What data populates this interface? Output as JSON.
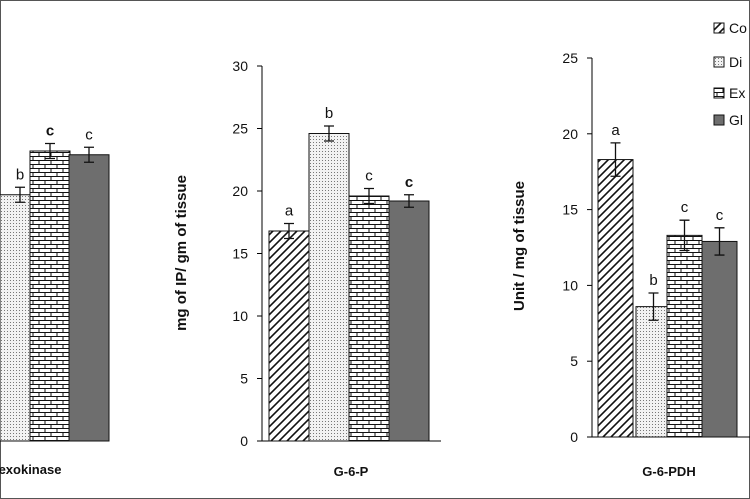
{
  "chart_data": [
    {
      "type": "bar",
      "xlabel": "exokinase",
      "ylabel": "",
      "categories": [
        "",
        "",
        "",
        ""
      ],
      "values": [
        null,
        19.7,
        23.2,
        22.9
      ],
      "errors": [
        null,
        0.6,
        0.6,
        0.6
      ],
      "letters": [
        "",
        "b",
        "c",
        "c"
      ],
      "letters_bold": [
        false,
        false,
        true,
        false
      ],
      "ylim": [
        0,
        30
      ]
    },
    {
      "type": "bar",
      "xlabel": "G-6-P",
      "ylabel": "mg of IP/ gm of tissue",
      "categories": [
        "",
        "",
        "",
        ""
      ],
      "values": [
        16.8,
        24.6,
        19.6,
        19.2
      ],
      "errors": [
        0.6,
        0.6,
        0.6,
        0.5
      ],
      "letters": [
        "a",
        "b",
        "c",
        "c"
      ],
      "letters_bold": [
        false,
        false,
        false,
        true
      ],
      "yticks": [
        "0",
        "5",
        "10",
        "15",
        "20",
        "25",
        "30"
      ],
      "ylim": [
        0,
        30
      ]
    },
    {
      "type": "bar",
      "xlabel": "G-6-PDH",
      "ylabel": "Unit / mg of tissue",
      "categories": [
        "",
        "",
        "",
        ""
      ],
      "values": [
        18.3,
        8.6,
        13.3,
        12.9
      ],
      "errors": [
        1.1,
        0.9,
        1.0,
        0.9
      ],
      "letters": [
        "a",
        "b",
        "c",
        "c"
      ],
      "letters_bold": [
        false,
        false,
        false,
        false
      ],
      "yticks": [
        "0",
        "5",
        "10",
        "15",
        "20",
        "25"
      ],
      "ylim": [
        0,
        25
      ]
    }
  ],
  "legend": {
    "placement": "top-right",
    "entries": [
      "Co",
      "Di",
      "Ex",
      "Gl"
    ]
  },
  "colors": {
    "axis": "#000000",
    "bar_outline": "#111111",
    "glibenclamide_fill": "#6e6e6e",
    "border": "#555555"
  }
}
